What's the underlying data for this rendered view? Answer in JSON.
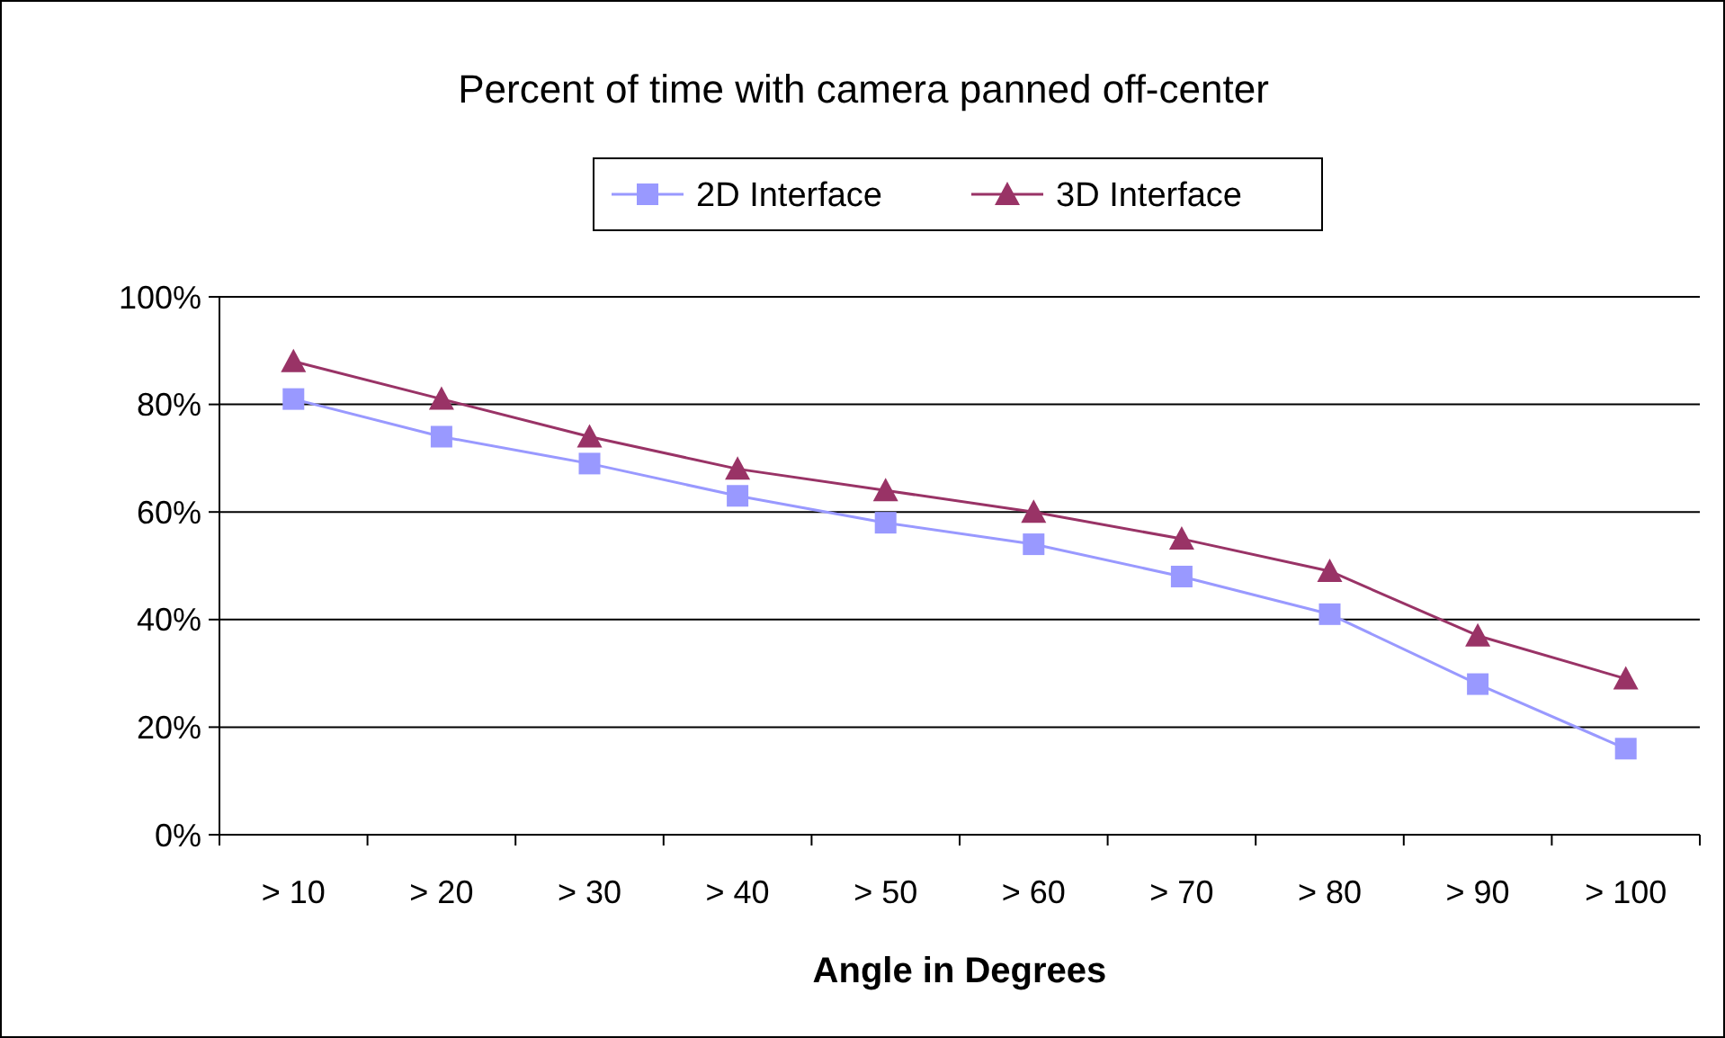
{
  "chart_data": {
    "type": "line",
    "title": "Percent of time with camera panned off-center",
    "xlabel": "Angle in Degrees",
    "categories": [
      "> 10",
      "> 20",
      "> 30",
      "> 40",
      "> 50",
      "> 60",
      "> 70",
      "> 80",
      "> 90",
      "> 100"
    ],
    "series": [
      {
        "name": "2D Interface",
        "color": "#9999ff",
        "marker": "square",
        "values": [
          81,
          74,
          69,
          63,
          58,
          54,
          48,
          41,
          28,
          16
        ]
      },
      {
        "name": "3D Interface",
        "color": "#993366",
        "marker": "triangle",
        "values": [
          88,
          81,
          74,
          68,
          64,
          60,
          55,
          49,
          37,
          29
        ]
      }
    ],
    "ylim": [
      0,
      100
    ],
    "yticks": [
      {
        "value": 0,
        "label": "0%"
      },
      {
        "value": 20,
        "label": "20%"
      },
      {
        "value": 40,
        "label": "40%"
      },
      {
        "value": 60,
        "label": "60%"
      },
      {
        "value": 80,
        "label": "80%"
      },
      {
        "value": 100,
        "label": "100%"
      }
    ],
    "grid": "y",
    "legend": "top"
  }
}
